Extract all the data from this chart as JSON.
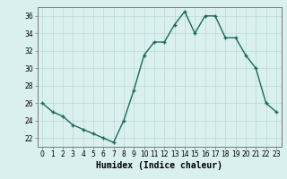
{
  "x": [
    0,
    1,
    2,
    3,
    4,
    5,
    6,
    7,
    8,
    9,
    10,
    11,
    12,
    13,
    14,
    15,
    16,
    17,
    18,
    19,
    20,
    21,
    22,
    23
  ],
  "y": [
    26,
    25,
    24.5,
    23.5,
    23,
    22.5,
    22,
    21.5,
    24,
    27.5,
    31.5,
    33,
    33,
    35,
    36.5,
    34,
    36,
    36,
    33.5,
    33.5,
    31.5,
    30,
    26,
    25
  ],
  "line_color": "#1a6b5a",
  "marker": "+",
  "marker_size": 3,
  "marker_linewidth": 1.0,
  "background_color": "#d9f0ee",
  "grid_color": "#b8d8d6",
  "xlabel": "Humidex (Indice chaleur)",
  "xlim": [
    -0.5,
    23.5
  ],
  "ylim": [
    21,
    37
  ],
  "yticks": [
    22,
    24,
    26,
    28,
    30,
    32,
    34,
    36
  ],
  "xticks": [
    0,
    1,
    2,
    3,
    4,
    5,
    6,
    7,
    8,
    9,
    10,
    11,
    12,
    13,
    14,
    15,
    16,
    17,
    18,
    19,
    20,
    21,
    22,
    23
  ],
  "xtick_labels": [
    "0",
    "1",
    "2",
    "3",
    "4",
    "5",
    "6",
    "7",
    "8",
    "9",
    "10",
    "11",
    "12",
    "13",
    "14",
    "15",
    "16",
    "17",
    "18",
    "19",
    "20",
    "21",
    "22",
    "23"
  ],
  "tick_fontsize": 5.5,
  "xlabel_fontsize": 7,
  "line_width": 1.0
}
